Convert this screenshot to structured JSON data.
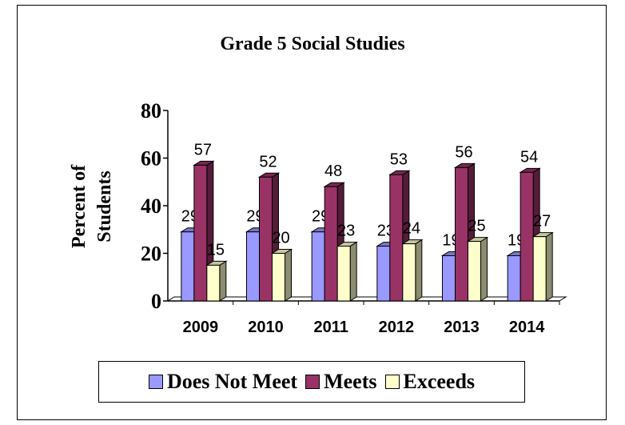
{
  "chart_data": {
    "type": "bar",
    "title": "Grade 5 Social Studies",
    "ylabel_line1": "Percent of",
    "ylabel_line2": "Students",
    "xlabel": "",
    "categories": [
      "2009",
      "2010",
      "2011",
      "2012",
      "2013",
      "2014"
    ],
    "ylim": [
      0,
      80
    ],
    "yticks": [
      "0",
      "20",
      "40",
      "60",
      "80"
    ],
    "series": [
      {
        "name": "Does Not Meet",
        "color": "#9999ff",
        "values": [
          29,
          29,
          29,
          23,
          19,
          19
        ]
      },
      {
        "name": "Meets",
        "color": "#993366",
        "values": [
          57,
          52,
          48,
          53,
          56,
          54
        ]
      },
      {
        "name": "Exceeds",
        "color": "#ffffcc",
        "values": [
          15,
          20,
          23,
          24,
          25,
          27
        ]
      }
    ],
    "legend_position": "bottom",
    "grid": false
  }
}
